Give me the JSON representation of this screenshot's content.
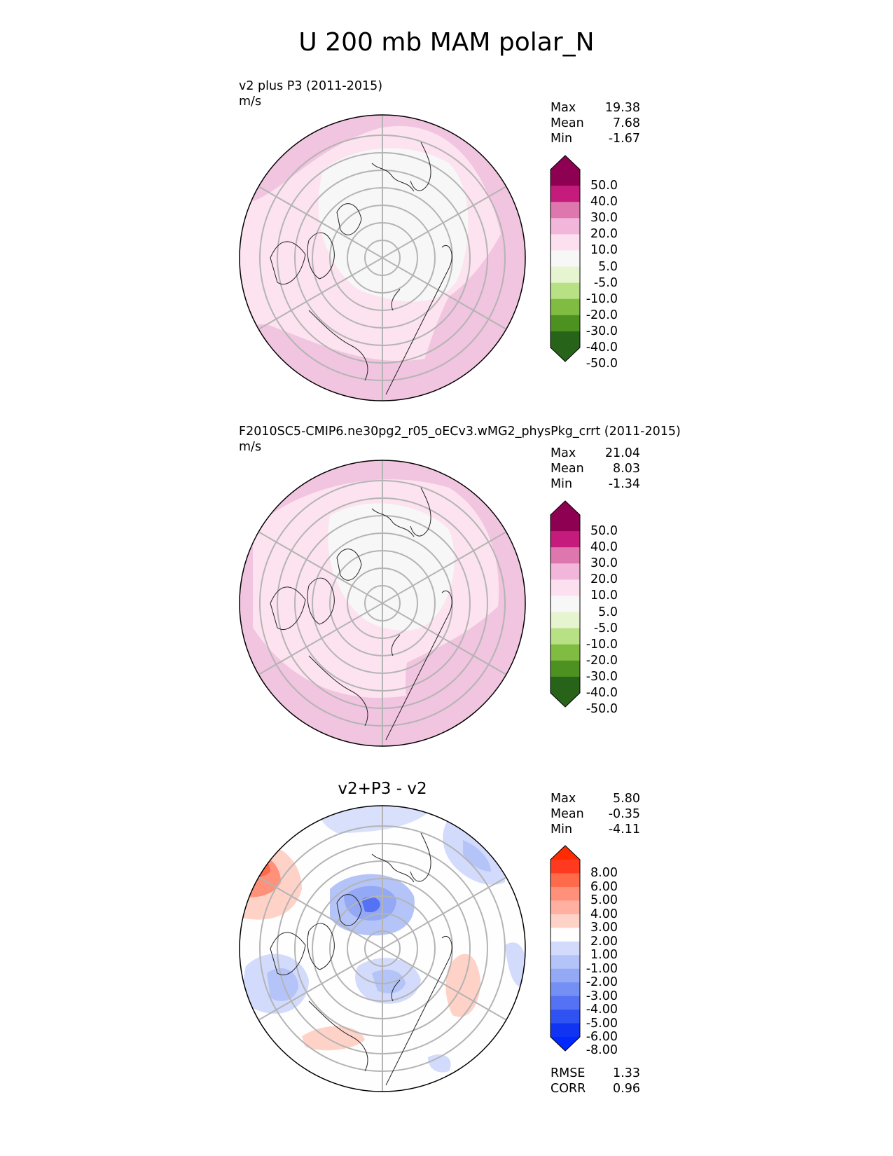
{
  "figure": {
    "title": "U 200 mb MAM polar_N"
  },
  "panels": [
    {
      "title_line1": "v2 plus P3 (2011-2015)",
      "title_line2": "m/s",
      "stats": [
        {
          "label": "Max",
          "value": "19.38"
        },
        {
          "label": "Mean",
          "value": "7.68"
        },
        {
          "label": "Min",
          "value": "-1.67"
        }
      ],
      "colorbar": {
        "ticks": [
          "50.0",
          "40.0",
          "30.0",
          "20.0",
          "10.0",
          "5.0",
          "-5.0",
          "-10.0",
          "-20.0",
          "-30.0",
          "-40.0",
          "-50.0"
        ],
        "colors": [
          "#8e0152",
          "#c51b7d",
          "#de77ae",
          "#f1b6da",
          "#fde0ef",
          "#f7f7f7",
          "#e6f5d0",
          "#b8e186",
          "#7fbc41",
          "#4d9221",
          "#276419"
        ]
      }
    },
    {
      "title_line1": "F2010SC5-CMIP6.ne30pg2_r05_oECv3.wMG2_physPkg_crrt (2011-2015)",
      "title_line2": "m/s",
      "stats": [
        {
          "label": "Max",
          "value": "21.04"
        },
        {
          "label": "Mean",
          "value": "8.03"
        },
        {
          "label": "Min",
          "value": "-1.34"
        }
      ],
      "colorbar": {
        "ticks": [
          "50.0",
          "40.0",
          "30.0",
          "20.0",
          "10.0",
          "5.0",
          "-5.0",
          "-10.0",
          "-20.0",
          "-30.0",
          "-40.0",
          "-50.0"
        ],
        "colors": [
          "#8e0152",
          "#c51b7d",
          "#de77ae",
          "#f1b6da",
          "#fde0ef",
          "#f7f7f7",
          "#e6f5d0",
          "#b8e186",
          "#7fbc41",
          "#4d9221",
          "#276419"
        ]
      }
    },
    {
      "title": "v2+P3 - v2",
      "stats": [
        {
          "label": "Max",
          "value": "5.80"
        },
        {
          "label": "Mean",
          "value": "-0.35"
        },
        {
          "label": "Min",
          "value": "-4.11"
        }
      ],
      "metrics": [
        {
          "label": "RMSE",
          "value": "1.33"
        },
        {
          "label": "CORR",
          "value": "0.96"
        }
      ],
      "colorbar": {
        "ticks": [
          "8.00",
          "6.00",
          "5.00",
          "4.00",
          "3.00",
          "2.00",
          "1.00",
          "-1.00",
          "-2.00",
          "-3.00",
          "-4.00",
          "-5.00",
          "-6.00",
          "-8.00"
        ],
        "colors": [
          "#ff3a20",
          "#ff6a4a",
          "#ff9079",
          "#ffb0a0",
          "#ffd2c8",
          "#fefefe",
          "#d2dbfc",
          "#b5c4f8",
          "#93a9f6",
          "#7590f4",
          "#5472f3",
          "#2f52f2",
          "#1133f2"
        ],
        "top_cap_color": "#ff2a00",
        "bottom_cap_color": "#0028ff"
      }
    }
  ]
}
